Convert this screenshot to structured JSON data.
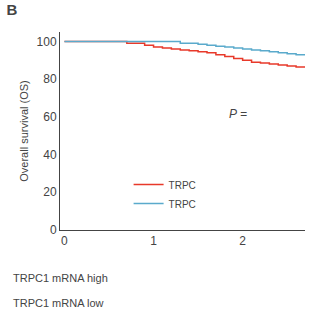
{
  "chart_data": {
    "type": "step",
    "title": "B",
    "ylabel": "Overall survival (OS)",
    "xlim": [
      -0.05,
      2.7
    ],
    "ylim": [
      0,
      105
    ],
    "xticks": [
      0,
      1,
      2
    ],
    "yticks": [
      0,
      20,
      40,
      60,
      80,
      100
    ],
    "grid": false,
    "legend": "lower left",
    "series": [
      {
        "name": "TRPC",
        "color": "#e8392a",
        "x": [
          0,
          0.5,
          0.7,
          0.9,
          1.0,
          1.1,
          1.2,
          1.3,
          1.4,
          1.5,
          1.6,
          1.7,
          1.8,
          1.9,
          2.0,
          2.1,
          2.2,
          2.3,
          2.4,
          2.5,
          2.6,
          2.7
        ],
        "values": [
          100,
          100,
          99,
          98,
          97,
          96.5,
          96,
          95.5,
          95,
          94.5,
          94,
          93,
          92,
          91,
          90,
          89,
          88.5,
          88,
          87.5,
          87,
          86.5,
          86
        ]
      },
      {
        "name": "TRPC",
        "color": "#5aaacc",
        "x": [
          0,
          1.1,
          1.3,
          1.5,
          1.6,
          1.7,
          1.8,
          1.9,
          2.0,
          2.1,
          2.2,
          2.3,
          2.4,
          2.5,
          2.6,
          2.7
        ],
        "values": [
          100,
          100,
          99,
          98.5,
          98,
          97.5,
          97,
          96.5,
          96,
          95.5,
          95,
          94.5,
          94,
          93.5,
          93,
          93
        ]
      }
    ],
    "annotations": [
      "P =",
      "TRPC1 mRNA high",
      "TRPC1 mRNA low"
    ]
  }
}
